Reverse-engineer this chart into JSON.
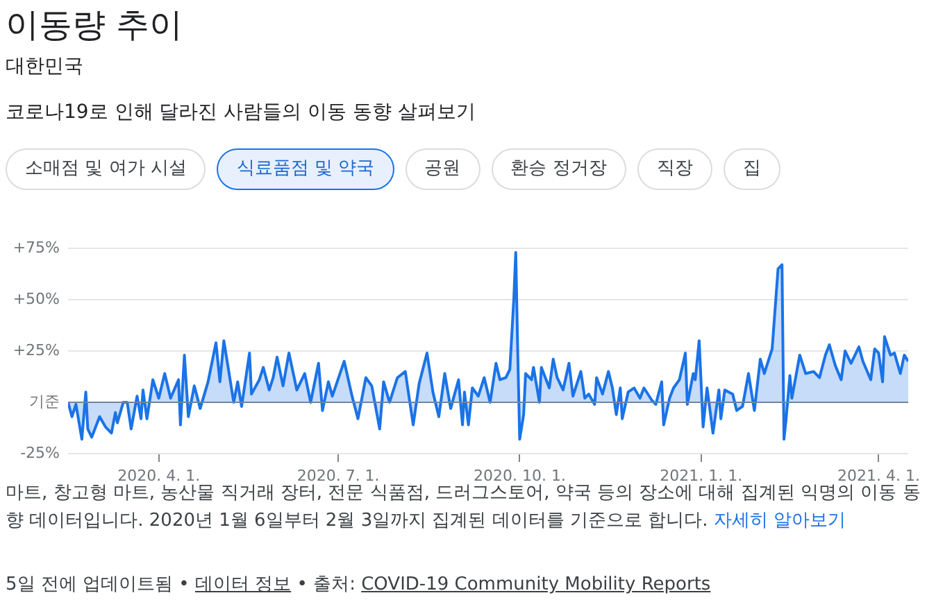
{
  "chart_data": {
    "type": "area",
    "title": "이동량 추이",
    "subtitle": "대한민국",
    "annotations": [
      "코로나19로 인해 달라진 사람들의 이동 동향 살펴보기",
      "소매점 및 여가 시설",
      "식료품점 및 약국",
      "공원",
      "환승 정거장",
      "직장",
      "집",
      "마트, 창고형 마트, 농산물 직거래 장터, 전문 식품점, 드러그스토어, 약국 등의 장소에 대해 집계된 익명의 이동 동향 데이터입니다. 2020년 1월 6일부터 2월 3일까지 집계된 데이터를 기준으로 합니다.",
      "자세히 알아보기",
      "5일 전에 업데이트됨 •",
      "데이터 정보",
      "• 출처:",
      "COVID-19 Community Mobility Reports"
    ],
    "x": [
      "2020-02-15",
      "2020-02-17",
      "2020-02-19",
      "2020-02-22",
      "2020-02-24",
      "2020-02-25",
      "2020-02-27",
      "2020-03-02",
      "2020-03-05",
      "2020-03-08",
      "2020-03-10",
      "2020-03-11",
      "2020-03-14",
      "2020-03-16",
      "2020-03-18",
      "2020-03-21",
      "2020-03-23",
      "2020-03-24",
      "2020-03-26",
      "2020-03-29",
      "2020-04-01",
      "2020-04-04",
      "2020-04-07",
      "2020-04-11",
      "2020-04-12",
      "2020-04-14",
      "2020-04-16",
      "2020-04-19",
      "2020-04-22",
      "2020-04-26",
      "2020-04-30",
      "2020-05-02",
      "2020-05-04",
      "2020-05-09",
      "2020-05-11",
      "2020-05-13",
      "2020-05-17",
      "2020-05-18",
      "2020-05-22",
      "2020-05-24",
      "2020-05-27",
      "2020-05-29",
      "2020-05-31",
      "2020-06-03",
      "2020-06-06",
      "2020-06-10",
      "2020-06-14",
      "2020-06-17",
      "2020-06-21",
      "2020-06-23",
      "2020-06-26",
      "2020-06-28",
      "2020-07-04",
      "2020-07-08",
      "2020-07-11",
      "2020-07-15",
      "2020-07-18",
      "2020-07-22",
      "2020-07-24",
      "2020-07-27",
      "2020-07-31",
      "2020-08-04",
      "2020-08-08",
      "2020-08-11",
      "2020-08-15",
      "2020-08-18",
      "2020-08-21",
      "2020-08-24",
      "2020-08-27",
      "2020-08-31",
      "2020-09-02",
      "2020-09-03",
      "2020-09-05",
      "2020-09-07",
      "2020-09-10",
      "2020-09-13",
      "2020-09-16",
      "2020-09-19",
      "2020-09-21",
      "2020-09-24",
      "2020-09-26",
      "2020-09-28",
      "2020-09-29",
      "2020-09-30",
      "2020-10-01",
      "2020-10-03",
      "2020-10-04",
      "2020-10-07",
      "2020-10-08",
      "2020-10-11",
      "2020-10-12",
      "2020-10-16",
      "2020-10-18",
      "2020-10-20",
      "2020-10-23",
      "2020-10-26",
      "2020-10-28",
      "2020-11-01",
      "2020-11-03",
      "2020-11-05",
      "2020-11-08",
      "2020-11-09",
      "2020-11-12",
      "2020-11-15",
      "2020-11-17",
      "2020-11-19",
      "2020-11-21",
      "2020-11-22",
      "2020-11-25",
      "2020-11-28",
      "2020-12-01",
      "2020-12-03",
      "2020-12-07",
      "2020-12-09",
      "2020-12-12",
      "2020-12-13",
      "2020-12-16",
      "2020-12-18",
      "2020-12-21",
      "2020-12-24",
      "2020-12-25",
      "2020-12-28",
      "2020-12-29",
      "2020-12-31",
      "2021-01-02",
      "2021-01-04",
      "2021-01-07",
      "2021-01-10",
      "2021-01-11",
      "2021-01-13",
      "2021-01-17",
      "2021-01-19",
      "2021-01-22",
      "2021-01-25",
      "2021-01-28",
      "2021-01-31",
      "2021-02-02",
      "2021-02-06",
      "2021-02-09",
      "2021-02-11",
      "2021-02-12",
      "2021-02-13",
      "2021-02-15",
      "2021-02-16",
      "2021-02-20",
      "2021-02-23",
      "2021-02-27",
      "2021-03-02",
      "2021-03-05",
      "2021-03-07",
      "2021-03-10",
      "2021-03-13",
      "2021-03-15",
      "2021-03-18",
      "2021-03-22",
      "2021-03-24",
      "2021-03-28",
      "2021-03-30",
      "2021-04-01",
      "2021-04-03",
      "2021-04-04",
      "2021-04-07",
      "2021-04-09",
      "2021-04-12",
      "2021-04-14",
      "2021-04-16"
    ],
    "values": [
      0,
      -7,
      -1,
      -18,
      5,
      -13,
      -17,
      -7,
      -12,
      -15,
      -5,
      -10,
      0,
      0,
      -13,
      3,
      -8,
      6,
      -8,
      11,
      2,
      14,
      2,
      11,
      -11,
      23,
      -7,
      8,
      -3,
      10,
      29,
      10,
      30,
      0,
      10,
      -2,
      24,
      4,
      11,
      17,
      6,
      12,
      22,
      8,
      24,
      6,
      14,
      0,
      19,
      -4,
      10,
      3,
      20,
      3,
      -8,
      12,
      8,
      -13,
      10,
      0,
      12,
      15,
      -11,
      9,
      24,
      5,
      -7,
      14,
      -3,
      11,
      -11,
      5,
      -11,
      7,
      3,
      12,
      0,
      19,
      11,
      12,
      16,
      50,
      73,
      25,
      -18,
      -6,
      14,
      11,
      17,
      0,
      17,
      7,
      21,
      12,
      6,
      19,
      3,
      15,
      2,
      4,
      -1,
      12,
      4,
      15,
      7,
      -6,
      7,
      -8,
      5,
      7,
      2,
      7,
      1,
      -1,
      10,
      -11,
      2,
      7,
      11,
      24,
      -1,
      14,
      11,
      30,
      -12,
      7,
      -15,
      6,
      -8,
      6,
      4,
      -4,
      -2,
      14,
      -4,
      21,
      14,
      26,
      65,
      67,
      -18,
      -9,
      13,
      2,
      23,
      14,
      15,
      12,
      23,
      28,
      18,
      11,
      25,
      19,
      27,
      20,
      11,
      26,
      24,
      10,
      32,
      23,
      24,
      14,
      23,
      20
    ],
    "color": "#1a73e8",
    "xlim": [
      "2020-02-15",
      "2021-04-16"
    ],
    "xticks": [
      {
        "value": "2020-04-01",
        "label": "2020. 4. 1."
      },
      {
        "value": "2020-07-01",
        "label": "2020. 7. 1."
      },
      {
        "value": "2020-10-01",
        "label": "2020. 10. 1."
      },
      {
        "value": "2021-01-01",
        "label": "2021. 1. 1."
      },
      {
        "value": "2021-04-01",
        "label": "2021. 4. 1."
      }
    ],
    "ylim": [
      -25,
      75
    ],
    "yticks": [
      {
        "value": -25,
        "label": "-25%"
      },
      {
        "value": 0,
        "label": "기준"
      },
      {
        "value": 25,
        "label": "+25%"
      },
      {
        "value": 50,
        "label": "+50%"
      },
      {
        "value": 75,
        "label": "+75%"
      }
    ],
    "grid": "y",
    "ref_lines": [
      {
        "axis": "y",
        "value": 0,
        "color": "#6f84a0"
      }
    ]
  }
}
